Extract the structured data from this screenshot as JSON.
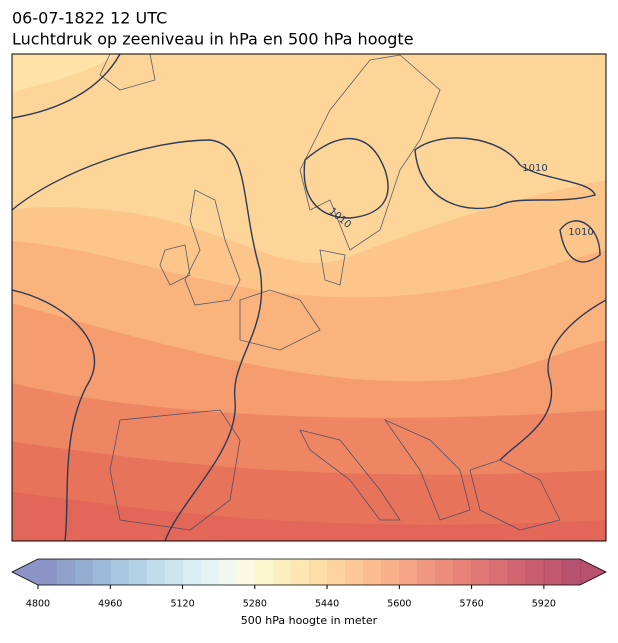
{
  "title": "06-07-1822 12 UTC",
  "subtitle": "Luchtdruk op zeeniveau in hPa en 500 hPa hoogte",
  "contour_labels": [
    "1010",
    "1010",
    "1010"
  ],
  "colorbar": {
    "label": "500 hPa hoogte in meter",
    "lim": [
      4800,
      6000
    ],
    "ticks": [
      4800,
      4960,
      5120,
      5280,
      5440,
      5600,
      5760,
      5920
    ],
    "colors": [
      "#6f79b8",
      "#7589bf",
      "#7b99c6",
      "#84a9cf",
      "#92b8d6",
      "#a1c6de",
      "#b1d3e5",
      "#c1dfeb",
      "#d1e8ef",
      "#e0f0f0",
      "#eef6ec",
      "#f9f9dc",
      "#fdf5c4",
      "#fdeab0",
      "#fde0a0",
      "#fdd592",
      "#fcc887",
      "#fbba7e",
      "#f9ab75",
      "#f69c6d",
      "#f28d66",
      "#ed7e60",
      "#e7705b",
      "#e06357",
      "#d85753",
      "#cf4b50",
      "#c6404e",
      "#bb364c",
      "#b02e4b",
      "#a5274a"
    ]
  }
}
